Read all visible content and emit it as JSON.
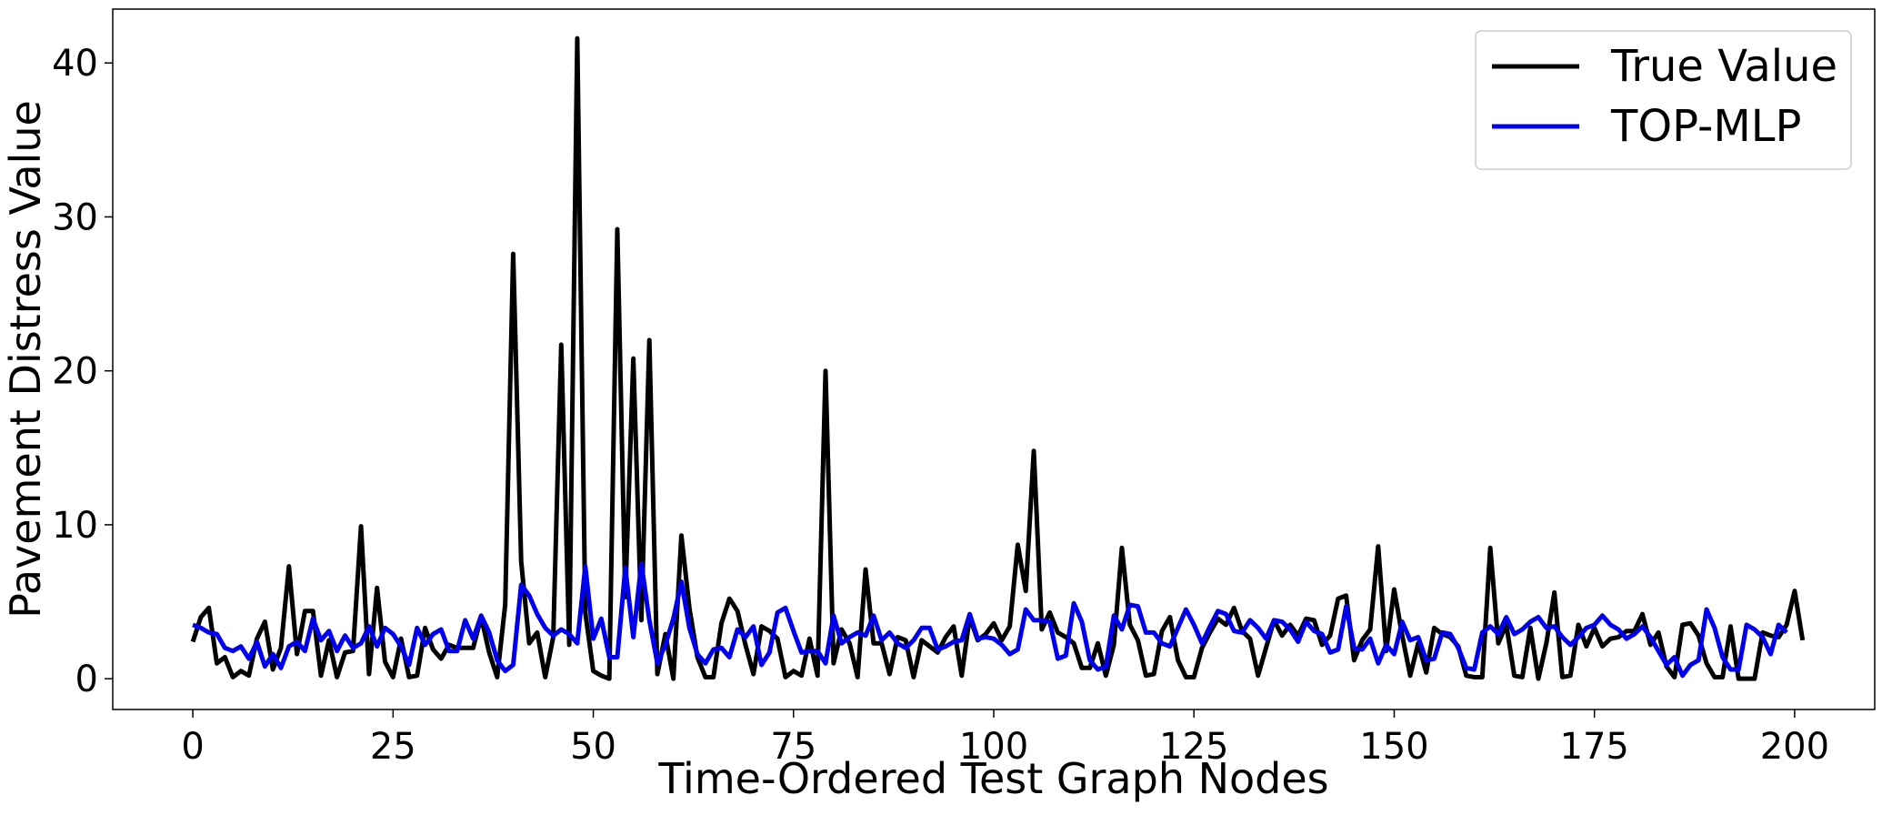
{
  "chart_data": {
    "type": "line",
    "xlabel": "Time-Ordered Test Graph Nodes",
    "ylabel": "Pavement Distress Value",
    "xlim": [
      -10,
      210
    ],
    "ylim": [
      -2,
      43.5
    ],
    "xticks": [
      0,
      25,
      50,
      75,
      100,
      125,
      150,
      175,
      200
    ],
    "yticks": [
      0,
      10,
      20,
      30,
      40
    ],
    "grid": false,
    "legend_position": "top-right",
    "series": [
      {
        "name": "True Value",
        "color": "#000000",
        "values": [
          2.4,
          4.0,
          4.6,
          1.0,
          1.4,
          0.1,
          0.5,
          0.2,
          2.6,
          3.7,
          0.6,
          2.0,
          7.3,
          1.6,
          4.4,
          4.4,
          0.2,
          2.5,
          0.1,
          1.7,
          1.8,
          9.9,
          0.3,
          5.9,
          1.1,
          0.1,
          2.6,
          0.1,
          0.2,
          3.3,
          1.9,
          1.3,
          2.2,
          2.0,
          2.0,
          2.0,
          4.0,
          1.7,
          0.1,
          4.8,
          27.6,
          7.6,
          2.3,
          3.0,
          0.1,
          2.7,
          21.7,
          2.2,
          41.6,
          4.3,
          0.5,
          0.2,
          0.0,
          29.2,
          5.3,
          20.8,
          3.8,
          22.0,
          0.3,
          2.9,
          0.0,
          9.3,
          4.6,
          1.4,
          0.1,
          0.1,
          3.6,
          5.2,
          4.4,
          2.2,
          0.3,
          3.4,
          3.1,
          2.6,
          0.1,
          0.5,
          0.2,
          2.6,
          0.2,
          20.0,
          1.0,
          3.2,
          2.3,
          0.1,
          7.1,
          2.3,
          2.3,
          0.3,
          2.7,
          2.5,
          0.1,
          2.5,
          2.1,
          1.7,
          2.7,
          3.4,
          0.2,
          4.0,
          2.5,
          2.9,
          3.6,
          2.5,
          3.4,
          8.7,
          5.7,
          14.8,
          3.2,
          4.3,
          3.0,
          2.7,
          2.3,
          0.7,
          0.7,
          2.3,
          0.2,
          2.2,
          8.5,
          3.5,
          2.5,
          0.2,
          0.3,
          3.1,
          4.0,
          1.2,
          0.1,
          0.1,
          2.0,
          3.0,
          3.9,
          3.5,
          4.6,
          3.1,
          2.6,
          0.2,
          2.0,
          3.8,
          2.8,
          3.5,
          2.8,
          3.9,
          3.8,
          2.2,
          2.8,
          5.2,
          5.4,
          1.2,
          2.5,
          3.2,
          8.6,
          1.8,
          5.8,
          2.8,
          0.2,
          2.3,
          0.4,
          3.3,
          2.9,
          2.7,
          2.1,
          0.2,
          0.1,
          0.1,
          8.5,
          2.3,
          3.5,
          0.2,
          0.1,
          3.3,
          0.0,
          2.3,
          5.6,
          0.1,
          0.2,
          3.5,
          2.1,
          3.3,
          2.1,
          2.6,
          2.7,
          3.1,
          3.1,
          4.2,
          2.2,
          3.0,
          0.8,
          0.1,
          3.5,
          3.6,
          2.8,
          1.0,
          0.1,
          0.1,
          3.4,
          0.0,
          0.0,
          0.0,
          3.0,
          2.8,
          2.7,
          3.5,
          5.7,
          2.5
        ]
      },
      {
        "name": "TOP-MLP",
        "color": "#0000ee",
        "values": [
          3.5,
          3.3,
          3.0,
          2.9,
          2.0,
          1.8,
          2.1,
          1.3,
          2.4,
          0.8,
          1.6,
          0.7,
          2.1,
          2.4,
          1.8,
          3.9,
          2.5,
          3.1,
          1.8,
          2.8,
          2.0,
          2.3,
          3.4,
          2.1,
          3.3,
          2.9,
          2.1,
          0.9,
          3.3,
          2.2,
          2.9,
          3.2,
          1.8,
          1.8,
          3.8,
          2.6,
          4.1,
          3.0,
          1.2,
          0.5,
          0.9,
          6.1,
          5.4,
          4.2,
          3.3,
          2.8,
          3.2,
          2.9,
          2.3,
          7.3,
          2.6,
          3.9,
          1.4,
          1.4,
          7.2,
          2.7,
          7.5,
          3.8,
          1.0,
          2.2,
          3.9,
          6.3,
          3.3,
          1.6,
          1.0,
          1.9,
          2.0,
          1.4,
          3.2,
          2.7,
          3.4,
          0.9,
          1.7,
          4.3,
          4.6,
          3.1,
          1.7,
          1.8,
          1.8,
          1.0,
          4.1,
          2.3,
          2.7,
          3.0,
          2.8,
          4.1,
          2.5,
          3.0,
          2.3,
          2.0,
          2.5,
          3.3,
          3.3,
          1.9,
          2.1,
          2.4,
          2.5,
          4.2,
          2.6,
          2.7,
          2.6,
          2.2,
          1.6,
          1.9,
          4.5,
          3.8,
          3.8,
          3.7,
          1.3,
          1.5,
          4.9,
          3.7,
          1.2,
          0.6,
          0.8,
          4.1,
          3.2,
          4.8,
          4.7,
          3.0,
          3.0,
          2.3,
          2.1,
          3.3,
          4.5,
          3.5,
          2.3,
          3.4,
          4.4,
          4.2,
          3.1,
          3.0,
          3.8,
          3.3,
          2.6,
          3.8,
          3.7,
          3.2,
          2.4,
          3.7,
          3.1,
          2.9,
          1.7,
          1.9,
          4.7,
          2.0,
          1.9,
          2.6,
          1.0,
          2.2,
          1.6,
          3.7,
          2.5,
          2.7,
          1.2,
          1.3,
          3.0,
          2.9,
          2.0,
          0.7,
          0.6,
          3.0,
          3.4,
          2.9,
          4.0,
          2.9,
          3.2,
          3.7,
          4.0,
          3.3,
          3.4,
          2.7,
          2.2,
          2.7,
          3.3,
          3.5,
          4.1,
          3.5,
          3.2,
          2.6,
          2.9,
          3.4,
          2.7,
          1.8,
          0.9,
          1.4,
          0.2,
          0.9,
          1.2,
          4.5,
          3.3,
          1.4,
          0.6,
          0.6,
          3.5,
          3.2,
          2.7,
          1.6,
          3.5,
          3.0
        ]
      }
    ]
  }
}
